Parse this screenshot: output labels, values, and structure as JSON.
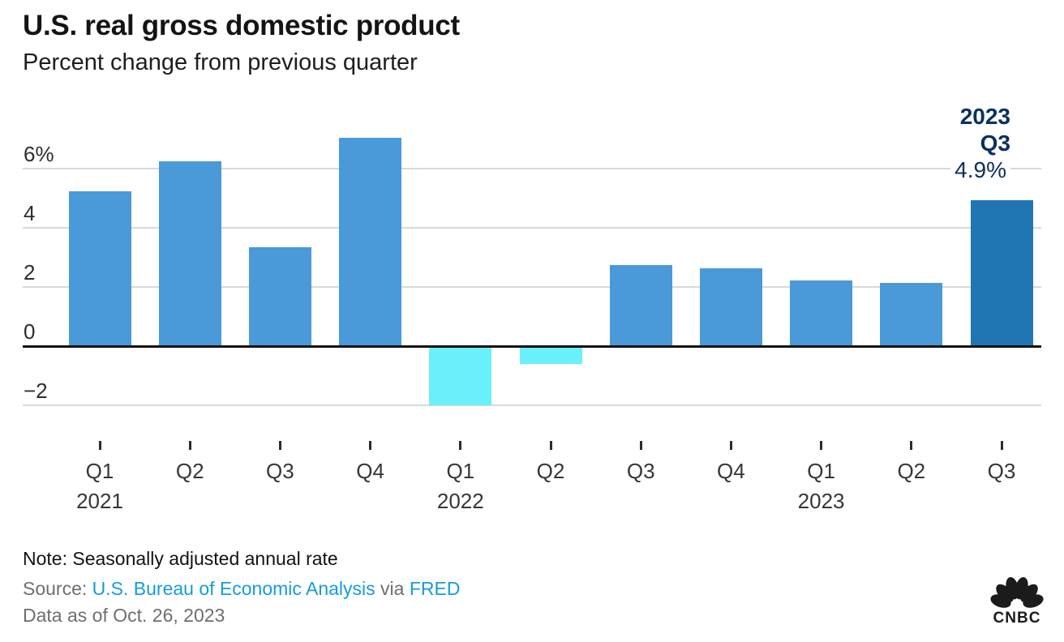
{
  "header": {
    "title": "U.S. real gross domestic product",
    "subtitle": "Percent change from previous quarter"
  },
  "annotation": {
    "line1": "2023",
    "line2": "Q3",
    "line3": "4.9%",
    "color": "#0A3161"
  },
  "footer": {
    "note": "Note: Seasonally adjusted annual rate",
    "source_prefix": "Source: ",
    "source_link1": "U.S. Bureau of Economic Analysis",
    "source_mid": " via ",
    "source_link2": "FRED",
    "data_as_of": "Data as of Oct. 26, 2023",
    "link_color": "#169CDB"
  },
  "logo": {
    "text": "CNBC"
  },
  "chart_data": {
    "type": "bar",
    "title": "U.S. real gross domestic product",
    "subtitle": "Percent change from previous quarter",
    "categories": [
      "Q1",
      "Q2",
      "Q3",
      "Q4",
      "Q1",
      "Q2",
      "Q3",
      "Q4",
      "Q1",
      "Q2",
      "Q3"
    ],
    "full_labels": [
      "2021 Q1",
      "2021 Q2",
      "2021 Q3",
      "2021 Q4",
      "2022 Q1",
      "2022 Q2",
      "2022 Q3",
      "2022 Q4",
      "2023 Q1",
      "2023 Q2",
      "2023 Q3"
    ],
    "values": [
      5.2,
      6.2,
      3.3,
      7.0,
      -2.0,
      -0.6,
      2.7,
      2.6,
      2.2,
      2.1,
      4.9
    ],
    "year_labels": [
      {
        "index": 0,
        "label": "2021"
      },
      {
        "index": 4,
        "label": "2022"
      },
      {
        "index": 8,
        "label": "2023"
      }
    ],
    "y_ticks": [
      {
        "value": 6,
        "label": "6%"
      },
      {
        "value": 4,
        "label": "4"
      },
      {
        "value": 2,
        "label": "2"
      },
      {
        "value": 0,
        "label": "0"
      },
      {
        "value": -2,
        "label": "−2"
      }
    ],
    "ylim": [
      -2.6,
      7.4
    ],
    "xlabel": "",
    "ylabel": "Percent change from previous quarter",
    "grid": true,
    "legend": "none",
    "bar_color": "#4A99D8",
    "negative_color": "#69F0FB",
    "highlight_color": "#2076B4",
    "highlight_index": 10,
    "annotation": {
      "target": "2023 Q3",
      "text": "2023 Q3 4.9%"
    }
  }
}
